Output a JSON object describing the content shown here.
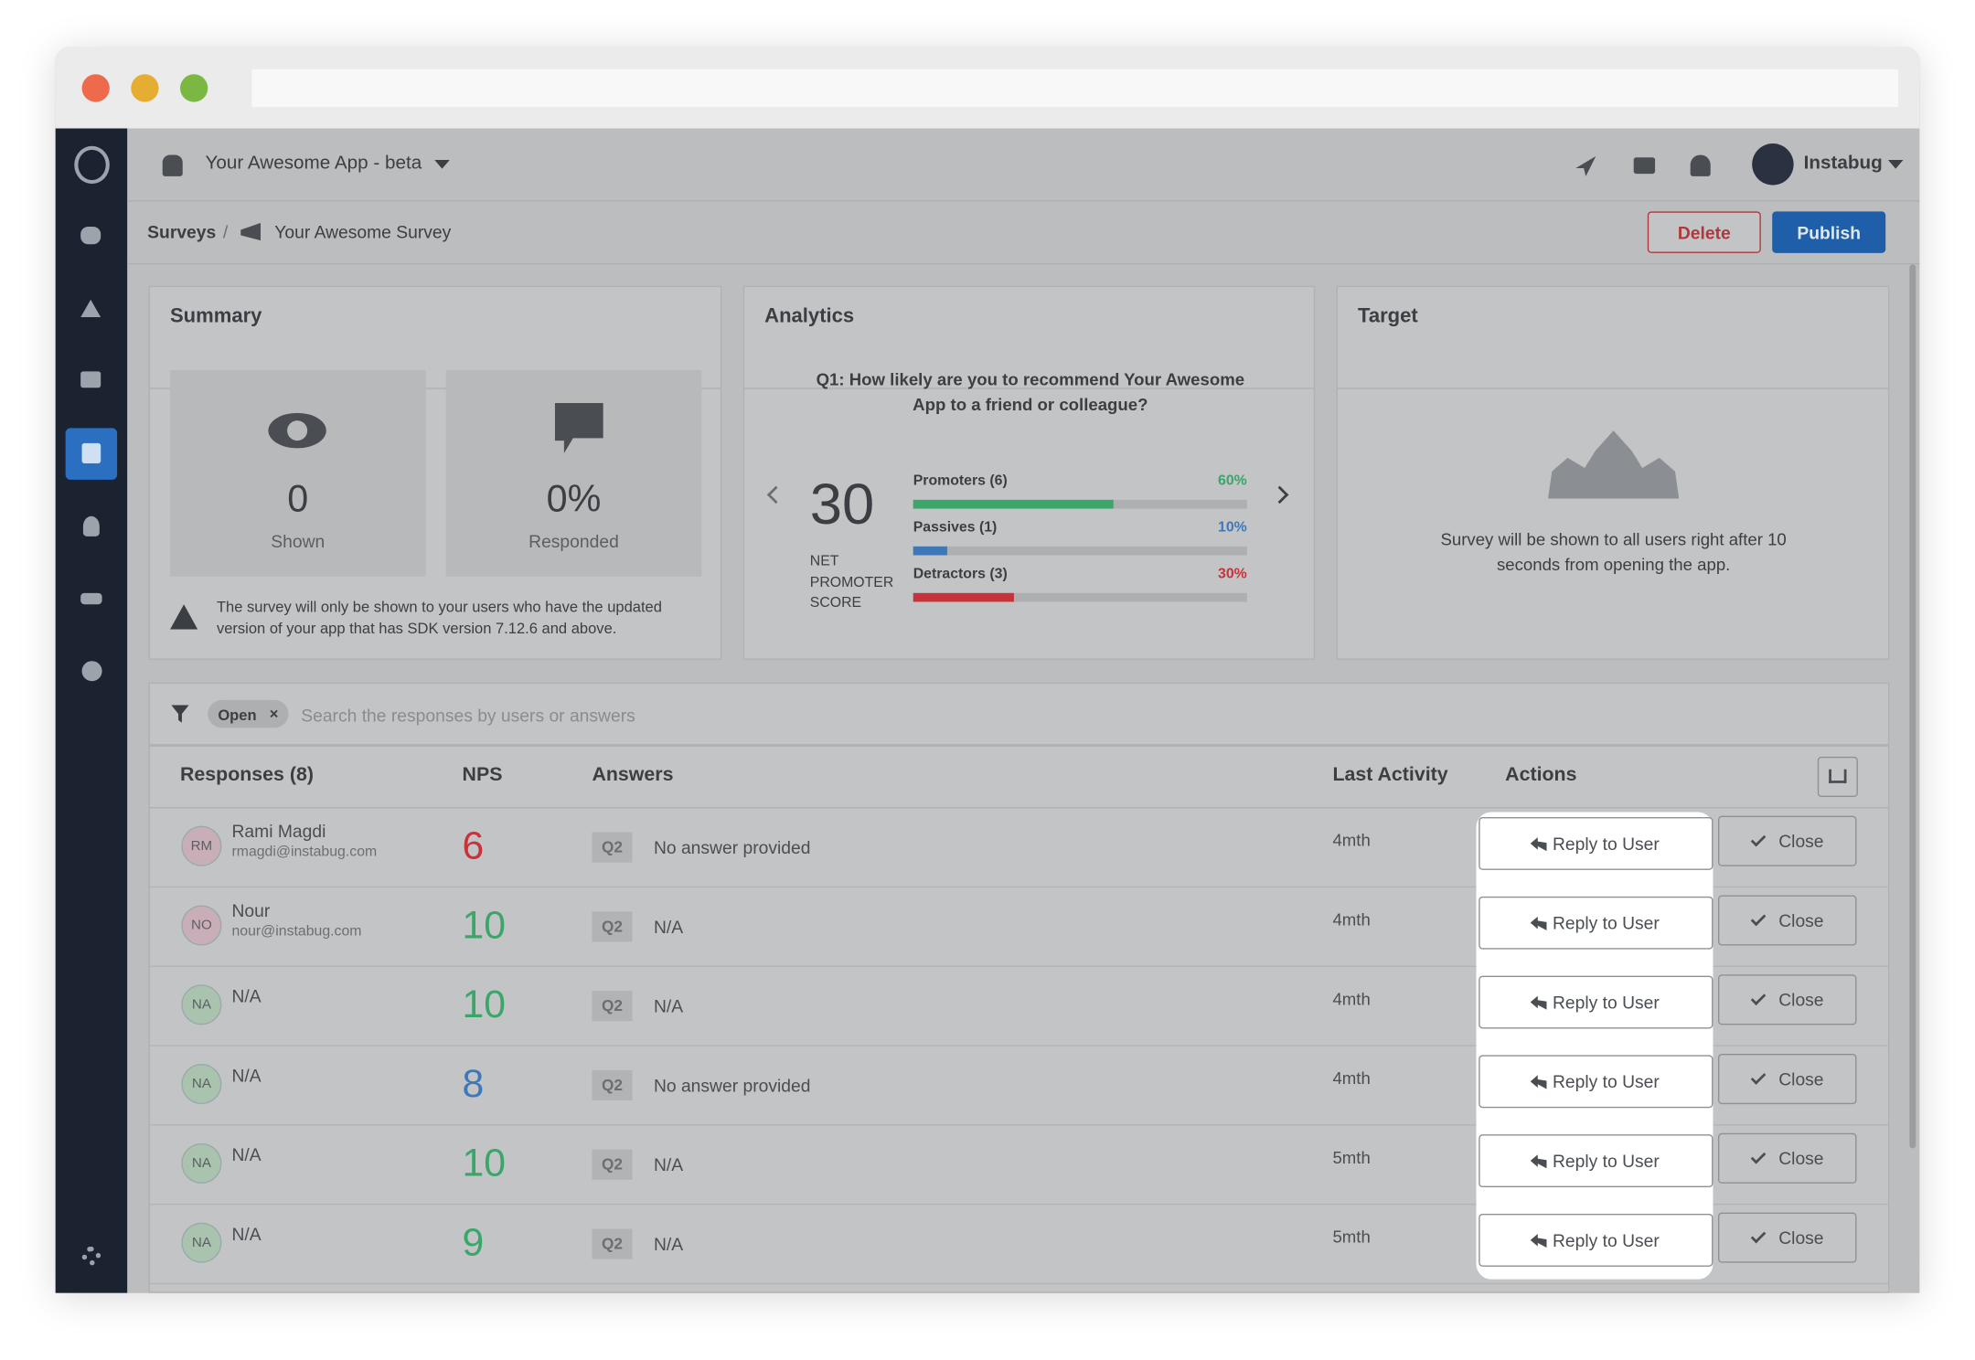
{
  "app": {
    "name": "Your Awesome App - beta",
    "user": "Instabug"
  },
  "breadcrumb": {
    "root": "Surveys",
    "separator": "/",
    "current": "Your Awesome Survey"
  },
  "buttons": {
    "delete": "Delete",
    "publish": "Publish"
  },
  "summary": {
    "title": "Summary",
    "shown": {
      "value": "0",
      "label": "Shown"
    },
    "responded": {
      "value": "0%",
      "label": "Responded"
    },
    "note": "The survey will only be shown to your users who have the updated version of your app that has SDK version 7.12.6 and above."
  },
  "analytics": {
    "title": "Analytics",
    "question": "Q1: How likely are you to recommend Your Awesome App to a friend or colleague?",
    "score": "30",
    "score_label": "NET PROMOTER SCORE",
    "groups": [
      {
        "name": "Promoters (6)",
        "value": 60,
        "label": "60%",
        "color": "#3aa66a"
      },
      {
        "name": "Passives (1)",
        "value": 10,
        "label": "10%",
        "color": "#3f78b8"
      },
      {
        "name": "Detractors (3)",
        "value": 30,
        "label": "30%",
        "color": "#c8323a"
      }
    ]
  },
  "target": {
    "title": "Target",
    "text": "Survey will be shown to all users right after 10 seconds from opening the app."
  },
  "filter": {
    "tag": "Open",
    "placeholder": "Search the responses by users or answers"
  },
  "table": {
    "headers": [
      "Responses (8)",
      "NPS",
      "Answers",
      "Last Activity",
      "Actions"
    ],
    "actions": {
      "reply": "Reply to User",
      "close": "Close"
    },
    "rows": [
      {
        "initials": "RM",
        "name": "Rami Magdi",
        "email": "rmagdi@instabug.com",
        "nps": "6",
        "nps_color": "#c8323a",
        "question": "Q2",
        "answer": "No answer provided",
        "activity": "4mth"
      },
      {
        "initials": "NO",
        "name": "Nour",
        "email": "nour@instabug.com",
        "nps": "10",
        "nps_color": "#3aa66a",
        "question": "Q2",
        "answer": "N/A",
        "activity": "4mth"
      },
      {
        "initials": "NA",
        "name": "N/A",
        "nps": "10",
        "nps_color": "#3aa66a",
        "question": "Q2",
        "answer": "N/A",
        "activity": "4mth"
      },
      {
        "initials": "NA",
        "name": "N/A",
        "nps": "8",
        "nps_color": "#3f78b8",
        "question": "Q2",
        "answer": "No answer provided",
        "activity": "4mth"
      },
      {
        "initials": "NA",
        "name": "N/A",
        "nps": "10",
        "nps_color": "#3aa66a",
        "question": "Q2",
        "answer": "N/A",
        "activity": "5mth"
      },
      {
        "initials": "NA",
        "name": "N/A",
        "nps": "9",
        "nps_color": "#3aa66a",
        "question": "Q2",
        "answer": "N/A",
        "activity": "5mth"
      }
    ]
  }
}
